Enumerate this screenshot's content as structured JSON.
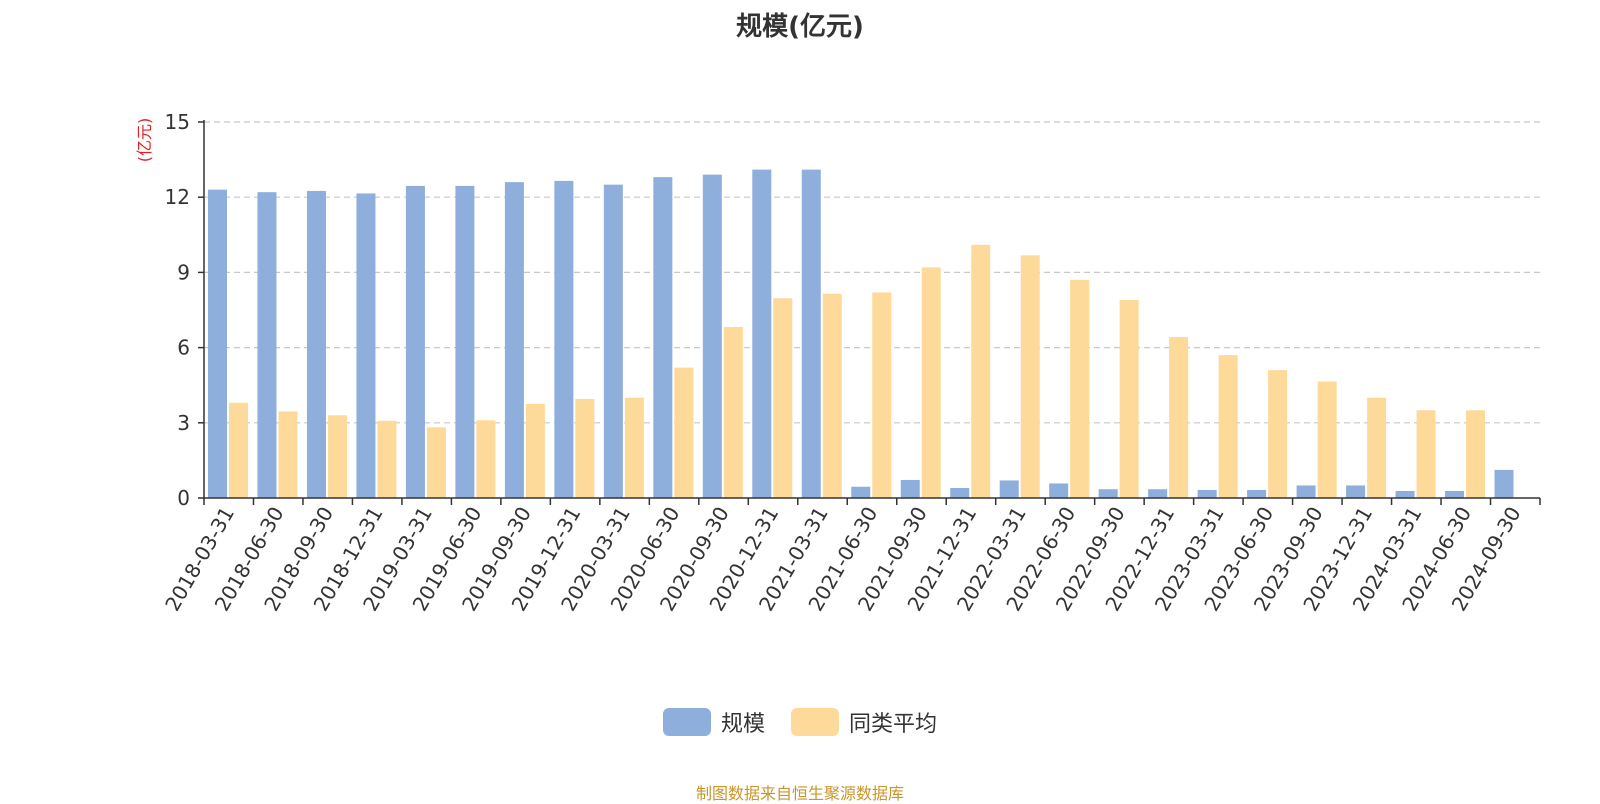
{
  "chart_data": {
    "type": "bar",
    "title": "规模(亿元)",
    "ylabel": "(亿元)",
    "xlabel": "",
    "ylim": [
      0,
      15
    ],
    "yticks": [
      0,
      3,
      6,
      9,
      12,
      15
    ],
    "grid": true,
    "legend_position": "bottom-center",
    "source_note": "制图数据来自恒生聚源数据库",
    "categories": [
      "2018-03-31",
      "2018-06-30",
      "2018-09-30",
      "2018-12-31",
      "2019-03-31",
      "2019-06-30",
      "2019-09-30",
      "2019-12-31",
      "2020-03-31",
      "2020-06-30",
      "2020-09-30",
      "2020-12-31",
      "2021-03-31",
      "2021-06-30",
      "2021-09-30",
      "2021-12-31",
      "2022-03-31",
      "2022-06-30",
      "2022-09-30",
      "2022-12-31",
      "2023-03-31",
      "2023-06-30",
      "2023-09-30",
      "2023-12-31",
      "2024-03-31",
      "2024-06-30",
      "2024-09-30"
    ],
    "series": [
      {
        "name": "规模",
        "color": "#8eaedc",
        "values": [
          12.3,
          12.2,
          12.25,
          12.15,
          12.45,
          12.45,
          12.6,
          12.65,
          12.5,
          12.8,
          12.9,
          13.1,
          13.1,
          0.45,
          0.72,
          0.4,
          0.7,
          0.58,
          0.35,
          0.35,
          0.32,
          0.32,
          0.5,
          0.5,
          0.28,
          0.28,
          1.12
        ]
      },
      {
        "name": "同类平均",
        "color": "#fdd99a",
        "values": [
          3.8,
          3.45,
          3.3,
          3.08,
          2.82,
          3.1,
          3.75,
          3.95,
          4.0,
          5.2,
          6.82,
          7.97,
          8.15,
          8.2,
          9.2,
          10.1,
          9.68,
          8.7,
          7.9,
          6.42,
          5.7,
          5.1,
          4.65,
          4.0,
          3.5,
          3.5,
          null
        ]
      }
    ]
  }
}
